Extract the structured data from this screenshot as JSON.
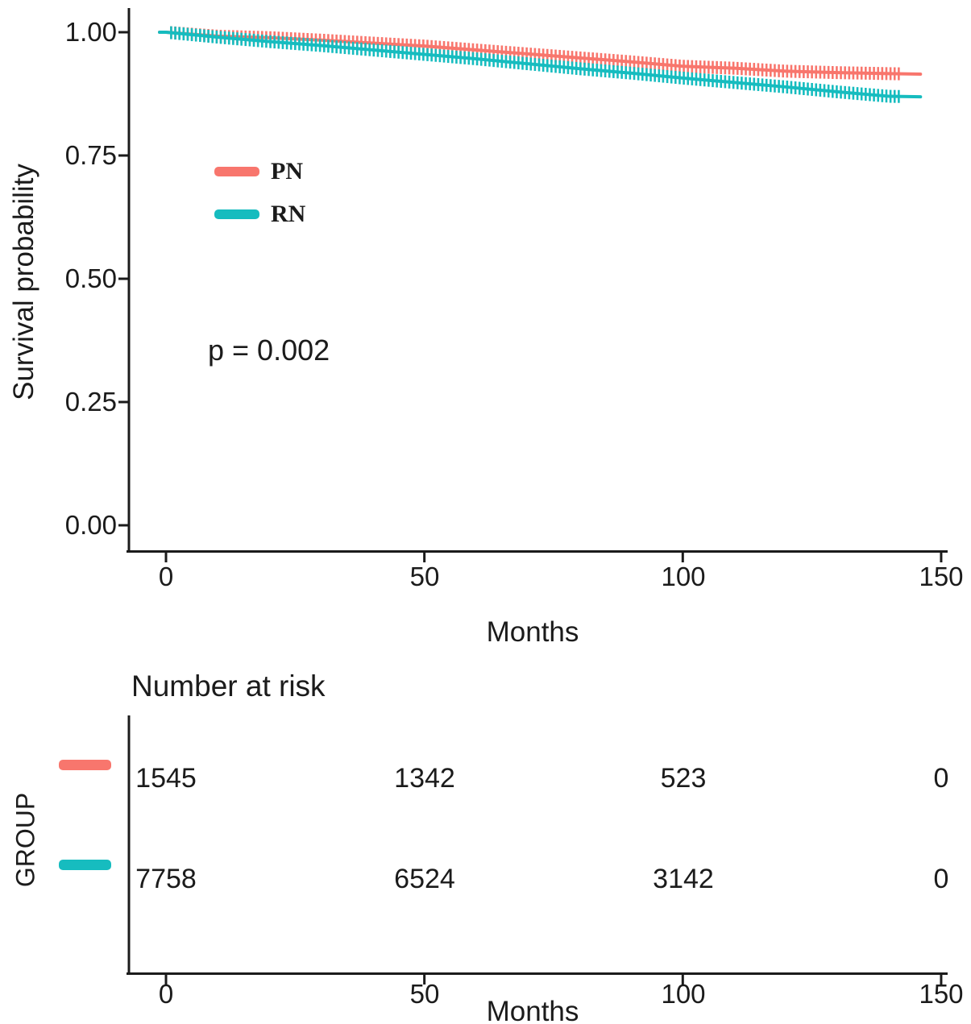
{
  "chart_data": {
    "type": "line",
    "subtype": "kaplan-meier-survival",
    "title": "",
    "xlabel": "Months",
    "ylabel": "Survival probability",
    "xlim": [
      0,
      150
    ],
    "ylim": [
      0.0,
      1.0
    ],
    "grid": false,
    "legend_position": "inside-top-left",
    "x_ticks": [
      0,
      50,
      100,
      150
    ],
    "x_tick_labels": [
      "0",
      "50",
      "100",
      "150"
    ],
    "y_ticks": [
      1.0,
      0.75,
      0.5,
      0.25,
      0.0
    ],
    "y_tick_labels": [
      "1.00",
      "0.75",
      "0.50",
      "0.25",
      "0.00"
    ],
    "pvalue_label": "p = 0.002",
    "colors": {
      "PN": "#F8766D",
      "RN": "#16BCBF",
      "axis": "#1b1b1b",
      "text": "#1b1b1b"
    },
    "legend": [
      {
        "name": "PN",
        "color": "#F8766D"
      },
      {
        "name": "RN",
        "color": "#16BCBF"
      }
    ],
    "series": [
      {
        "name": "PN",
        "color": "#F8766D",
        "x": [
          0,
          10,
          20,
          30,
          40,
          50,
          60,
          70,
          80,
          90,
          100,
          110,
          120,
          130,
          140,
          146
        ],
        "survival": [
          1.0,
          0.992,
          0.989,
          0.984,
          0.978,
          0.972,
          0.964,
          0.956,
          0.948,
          0.94,
          0.931,
          0.927,
          0.921,
          0.918,
          0.916,
          0.915
        ],
        "censor_start": 1.0,
        "censor_end": 142.5,
        "censor_step": 0.8
      },
      {
        "name": "RN",
        "color": "#16BCBF",
        "x": [
          0,
          10,
          20,
          30,
          40,
          50,
          60,
          70,
          80,
          90,
          100,
          110,
          120,
          130,
          140,
          146
        ],
        "survival": [
          1.0,
          0.99,
          0.981,
          0.973,
          0.964,
          0.955,
          0.946,
          0.936,
          0.926,
          0.917,
          0.907,
          0.898,
          0.889,
          0.879,
          0.87,
          0.869
        ],
        "censor_start": 1.0,
        "censor_end": 142.5,
        "censor_step": 0.8
      }
    ],
    "number_at_risk": {
      "title": "Number at risk",
      "group_axis_label": "GROUP",
      "xlabel": "Months",
      "x_ticks": [
        0,
        50,
        100,
        150
      ],
      "rows": [
        {
          "name": "PN",
          "color": "#F8766D",
          "values": [
            "1545",
            "1342",
            "523",
            "0"
          ]
        },
        {
          "name": "RN",
          "color": "#16BCBF",
          "values": [
            "7758",
            "6524",
            "3142",
            "0"
          ]
        }
      ]
    }
  }
}
